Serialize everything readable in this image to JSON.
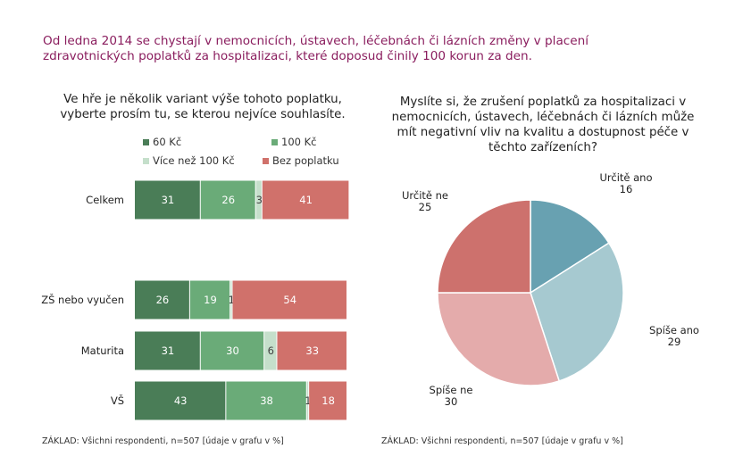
{
  "headline": {
    "line1": "Od ledna 2014 se chystají  v nemocnicích, ústavech, léčebnách či lázních změny v placení",
    "line2": "zdravotnických poplatků za hospitalizaci, které doposud činily 100 korun za den."
  },
  "left_question": {
    "line1": "Ve hře je několik variant výše tohoto poplatku,",
    "line2": "vyberte prosím tu, se kterou nejvíce souhlasíte."
  },
  "right_question": {
    "line1": "Myslíte si, že zrušení poplatků za hospitalizaci v",
    "line2": "nemocnicích, ústavech, léčebnách či lázních může",
    "line3": "mít negativní vliv na kvalitu a dostupnost péče v",
    "line4": "těchto zařízeních?"
  },
  "footer_left": "ZÁKLAD: Všichni respondenti, n=507 [údaje v grafu v %]",
  "footer_right": "ZÁKLAD: Všichni respondenti, n=507 [údaje v grafu v %]",
  "chart_data": [
    {
      "type": "bar",
      "orientation": "horizontal",
      "stacked": true,
      "categories": [
        "Celkem",
        "ZŠ nebo vyučen",
        "Maturita",
        "VŠ"
      ],
      "series": [
        {
          "name": "60 Kč",
          "color": "#4a7d57",
          "values": [
            31,
            26,
            31,
            43
          ]
        },
        {
          "name": "100 Kč",
          "color": "#6aab78",
          "values": [
            26,
            19,
            30,
            38
          ]
        },
        {
          "name": "Více než 100 Kč",
          "color": "#c5dfcb",
          "values": [
            3,
            1,
            6,
            1
          ]
        },
        {
          "name": "Bez poplatku",
          "color": "#d0716b",
          "values": [
            41,
            54,
            33,
            18
          ]
        }
      ],
      "legend_position": "top",
      "xlim": [
        0,
        100
      ],
      "grid": false
    },
    {
      "type": "pie",
      "labels": [
        {
          "line1": "Určitě ano",
          "line2": "16"
        },
        {
          "line1": "Spíše ano",
          "line2": "29"
        },
        {
          "line1": "Spíše ne",
          "line2": "30"
        },
        {
          "line1": "Určitě ne",
          "line2": "25"
        }
      ],
      "values": [
        16,
        29,
        30,
        25
      ],
      "colors": [
        "#68a1b1",
        "#a6c9d0",
        "#e4abab",
        "#cd716d"
      ],
      "start": "12 o'clock",
      "direction": "clockwise"
    }
  ]
}
